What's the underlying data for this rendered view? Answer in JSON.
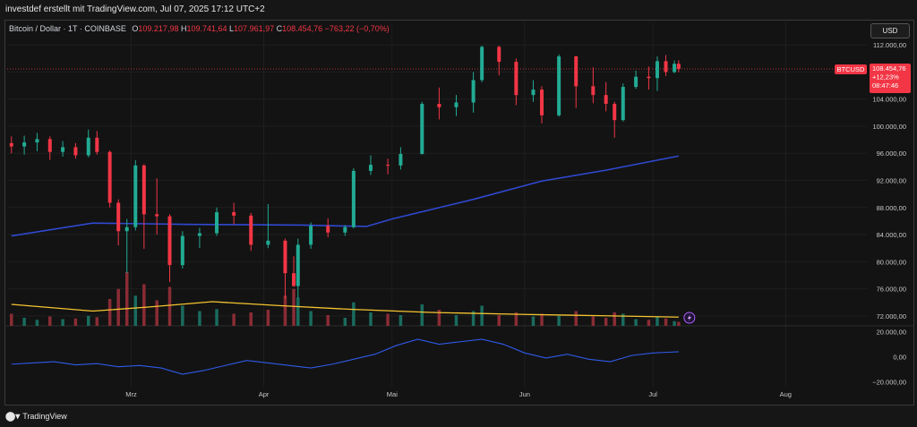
{
  "header": {
    "caption": "investdef erstellt mit TradingView.com, Jul 07, 2025 17:12 UTC+2"
  },
  "legend": {
    "symbol": "Bitcoin / Dollar · 1T · COINBASE",
    "open_label": "O",
    "open": "109.217,98",
    "high_label": "H",
    "high": "109.741,64",
    "low_label": "L",
    "low": "107.961,97",
    "close_label": "C",
    "close": "108.454,76",
    "change": "−763,22 (−0,70%)"
  },
  "currency_button": "USD",
  "price_badge": {
    "ticker": "BTCUSD",
    "price": "108.454,76",
    "change": "+12,23%",
    "countdown": "08:47:46"
  },
  "footer": {
    "logo_text": "TradingView"
  },
  "colors": {
    "up": "#22ab94",
    "down": "#f23645",
    "ma_long": "#2f49d1",
    "volume_ma": "#f4c430",
    "oscillator": "#2f5ae8",
    "background": "#131313"
  },
  "chart_data": {
    "type": "candlestick",
    "price_axis": {
      "ylim": [
        70000,
        114000
      ],
      "ticks": [
        {
          "v": 112000,
          "label": "112.000,00"
        },
        {
          "v": 108000,
          "label": "108.000,00"
        },
        {
          "v": 104000,
          "label": "104.000,00"
        },
        {
          "v": 100000,
          "label": "100.000,00"
        },
        {
          "v": 96000,
          "label": "96.000,00"
        },
        {
          "v": 92000,
          "label": "92.000,00"
        },
        {
          "v": 88000,
          "label": "88.000,00"
        },
        {
          "v": 84000,
          "label": "84.000,00"
        },
        {
          "v": 80000,
          "label": "80.000,00"
        },
        {
          "v": 76000,
          "label": "76.000,00"
        },
        {
          "v": 72000,
          "label": "72.000,00"
        }
      ]
    },
    "time_axis": {
      "labels": [
        {
          "date": "2025-03-01",
          "label": "Mrz"
        },
        {
          "date": "2025-04-01",
          "label": "Apr"
        },
        {
          "date": "2025-05-01",
          "label": "Mai"
        },
        {
          "date": "2025-06-01",
          "label": "Jun"
        },
        {
          "date": "2025-07-01",
          "label": "Jul"
        },
        {
          "date": "2025-08-01",
          "label": "Aug"
        }
      ]
    },
    "last_price": 108454.76,
    "moving_average_long": [
      {
        "date": "2025-02-01",
        "v": 83800
      },
      {
        "date": "2025-02-20",
        "v": 85700
      },
      {
        "date": "2025-03-15",
        "v": 85500
      },
      {
        "date": "2025-04-10",
        "v": 85400
      },
      {
        "date": "2025-04-25",
        "v": 85200
      },
      {
        "date": "2025-05-01",
        "v": 86300
      },
      {
        "date": "2025-05-20",
        "v": 89200
      },
      {
        "date": "2025-06-05",
        "v": 91900
      },
      {
        "date": "2025-06-20",
        "v": 93500
      },
      {
        "date": "2025-07-07",
        "v": 95600
      }
    ],
    "candles": [
      {
        "date": "2025-02-01",
        "o": 97500,
        "h": 98500,
        "l": 96000,
        "c": 97000
      },
      {
        "date": "2025-02-04",
        "o": 97000,
        "h": 98600,
        "l": 95800,
        "c": 97600
      },
      {
        "date": "2025-02-07",
        "o": 97600,
        "h": 99000,
        "l": 96300,
        "c": 98100
      },
      {
        "date": "2025-02-10",
        "o": 98100,
        "h": 98500,
        "l": 95000,
        "c": 96200
      },
      {
        "date": "2025-02-13",
        "o": 96200,
        "h": 97800,
        "l": 95500,
        "c": 96900
      },
      {
        "date": "2025-02-16",
        "o": 96900,
        "h": 97500,
        "l": 95200,
        "c": 95700
      },
      {
        "date": "2025-02-19",
        "o": 95700,
        "h": 99500,
        "l": 95400,
        "c": 98300
      },
      {
        "date": "2025-02-21",
        "o": 98300,
        "h": 99300,
        "l": 95800,
        "c": 96200
      },
      {
        "date": "2025-02-24",
        "o": 96200,
        "h": 96400,
        "l": 88000,
        "c": 88700
      },
      {
        "date": "2025-02-26",
        "o": 88700,
        "h": 89200,
        "l": 82400,
        "c": 84500
      },
      {
        "date": "2025-02-28",
        "o": 84500,
        "h": 86300,
        "l": 78300,
        "c": 85100
      },
      {
        "date": "2025-03-02",
        "o": 85100,
        "h": 95000,
        "l": 84600,
        "c": 94200
      },
      {
        "date": "2025-03-04",
        "o": 94200,
        "h": 94400,
        "l": 81900,
        "c": 87000
      },
      {
        "date": "2025-03-07",
        "o": 87000,
        "h": 92300,
        "l": 84000,
        "c": 86700
      },
      {
        "date": "2025-03-10",
        "o": 86700,
        "h": 87000,
        "l": 77000,
        "c": 79500
      },
      {
        "date": "2025-03-13",
        "o": 79500,
        "h": 84500,
        "l": 79000,
        "c": 83800
      },
      {
        "date": "2025-03-17",
        "o": 83800,
        "h": 85000,
        "l": 82000,
        "c": 84200
      },
      {
        "date": "2025-03-21",
        "o": 84200,
        "h": 88000,
        "l": 83800,
        "c": 87300
      },
      {
        "date": "2025-03-25",
        "o": 87300,
        "h": 88700,
        "l": 85500,
        "c": 86800
      },
      {
        "date": "2025-03-29",
        "o": 86800,
        "h": 87200,
        "l": 81600,
        "c": 82500
      },
      {
        "date": "2025-04-02",
        "o": 82500,
        "h": 88500,
        "l": 82000,
        "c": 83100
      },
      {
        "date": "2025-04-06",
        "o": 83100,
        "h": 83400,
        "l": 74500,
        "c": 78300
      },
      {
        "date": "2025-04-08",
        "o": 78300,
        "h": 80800,
        "l": 76300,
        "c": 76400
      },
      {
        "date": "2025-04-09",
        "o": 76400,
        "h": 83400,
        "l": 74600,
        "c": 82500
      },
      {
        "date": "2025-04-12",
        "o": 82500,
        "h": 85800,
        "l": 81900,
        "c": 85300
      },
      {
        "date": "2025-04-16",
        "o": 85300,
        "h": 86400,
        "l": 83600,
        "c": 84300
      },
      {
        "date": "2025-04-20",
        "o": 84300,
        "h": 85400,
        "l": 83800,
        "c": 85100
      },
      {
        "date": "2025-04-22",
        "o": 85100,
        "h": 93800,
        "l": 84900,
        "c": 93400
      },
      {
        "date": "2025-04-26",
        "o": 93400,
        "h": 95700,
        "l": 92800,
        "c": 94300
      },
      {
        "date": "2025-04-30",
        "o": 94300,
        "h": 95200,
        "l": 92900,
        "c": 94200
      },
      {
        "date": "2025-05-03",
        "o": 94200,
        "h": 96900,
        "l": 93600,
        "c": 95900
      },
      {
        "date": "2025-05-08",
        "o": 95900,
        "h": 103600,
        "l": 95800,
        "c": 103300
      },
      {
        "date": "2025-05-12",
        "o": 103300,
        "h": 105700,
        "l": 101000,
        "c": 102800
      },
      {
        "date": "2025-05-16",
        "o": 102800,
        "h": 104600,
        "l": 101500,
        "c": 103500
      },
      {
        "date": "2025-05-20",
        "o": 103500,
        "h": 108000,
        "l": 102000,
        "c": 106800
      },
      {
        "date": "2025-05-22",
        "o": 106800,
        "h": 111900,
        "l": 106500,
        "c": 111700
      },
      {
        "date": "2025-05-26",
        "o": 111700,
        "h": 111900,
        "l": 107500,
        "c": 109500
      },
      {
        "date": "2025-05-30",
        "o": 109500,
        "h": 110000,
        "l": 103100,
        "c": 104600
      },
      {
        "date": "2025-06-03",
        "o": 104600,
        "h": 106800,
        "l": 103600,
        "c": 105400
      },
      {
        "date": "2025-06-05",
        "o": 105400,
        "h": 105900,
        "l": 100400,
        "c": 101600
      },
      {
        "date": "2025-06-09",
        "o": 101600,
        "h": 110600,
        "l": 101400,
        "c": 110300
      },
      {
        "date": "2025-06-13",
        "o": 110300,
        "h": 110400,
        "l": 102700,
        "c": 105900
      },
      {
        "date": "2025-06-17",
        "o": 105900,
        "h": 108700,
        "l": 103400,
        "c": 104600
      },
      {
        "date": "2025-06-20",
        "o": 104600,
        "h": 106500,
        "l": 102200,
        "c": 103300
      },
      {
        "date": "2025-06-22",
        "o": 103300,
        "h": 103600,
        "l": 98300,
        "c": 100900
      },
      {
        "date": "2025-06-24",
        "o": 100900,
        "h": 106300,
        "l": 100700,
        "c": 105800
      },
      {
        "date": "2025-06-27",
        "o": 105800,
        "h": 108200,
        "l": 105500,
        "c": 107300
      },
      {
        "date": "2025-06-30",
        "o": 107300,
        "h": 108800,
        "l": 105400,
        "c": 107100
      },
      {
        "date": "2025-07-02",
        "o": 107100,
        "h": 110300,
        "l": 105200,
        "c": 109600
      },
      {
        "date": "2025-07-04",
        "o": 109600,
        "h": 110500,
        "l": 107400,
        "c": 108000
      },
      {
        "date": "2025-07-06",
        "o": 108000,
        "h": 109700,
        "l": 107800,
        "c": 109200
      },
      {
        "date": "2025-07-07",
        "o": 109218,
        "h": 109742,
        "l": 107962,
        "c": 108455
      }
    ],
    "volume": {
      "bars": [
        {
          "date": "2025-02-01",
          "v": 18,
          "dir": "down"
        },
        {
          "date": "2025-02-04",
          "v": 12,
          "dir": "up"
        },
        {
          "date": "2025-02-07",
          "v": 9,
          "dir": "up"
        },
        {
          "date": "2025-02-10",
          "v": 14,
          "dir": "down"
        },
        {
          "date": "2025-02-13",
          "v": 10,
          "dir": "up"
        },
        {
          "date": "2025-02-16",
          "v": 11,
          "dir": "down"
        },
        {
          "date": "2025-02-19",
          "v": 15,
          "dir": "up"
        },
        {
          "date": "2025-02-21",
          "v": 13,
          "dir": "down"
        },
        {
          "date": "2025-02-24",
          "v": 40,
          "dir": "down"
        },
        {
          "date": "2025-02-26",
          "v": 55,
          "dir": "down"
        },
        {
          "date": "2025-02-28",
          "v": 80,
          "dir": "down"
        },
        {
          "date": "2025-03-02",
          "v": 45,
          "dir": "up"
        },
        {
          "date": "2025-03-04",
          "v": 62,
          "dir": "down"
        },
        {
          "date": "2025-03-07",
          "v": 38,
          "dir": "down"
        },
        {
          "date": "2025-03-10",
          "v": 58,
          "dir": "down"
        },
        {
          "date": "2025-03-13",
          "v": 30,
          "dir": "up"
        },
        {
          "date": "2025-03-17",
          "v": 22,
          "dir": "up"
        },
        {
          "date": "2025-03-21",
          "v": 25,
          "dir": "up"
        },
        {
          "date": "2025-03-25",
          "v": 18,
          "dir": "down"
        },
        {
          "date": "2025-03-29",
          "v": 20,
          "dir": "down"
        },
        {
          "date": "2025-04-02",
          "v": 24,
          "dir": "down"
        },
        {
          "date": "2025-04-06",
          "v": 45,
          "dir": "down"
        },
        {
          "date": "2025-04-08",
          "v": 55,
          "dir": "down"
        },
        {
          "date": "2025-04-09",
          "v": 42,
          "dir": "up"
        },
        {
          "date": "2025-04-12",
          "v": 22,
          "dir": "up"
        },
        {
          "date": "2025-04-16",
          "v": 16,
          "dir": "down"
        },
        {
          "date": "2025-04-20",
          "v": 12,
          "dir": "up"
        },
        {
          "date": "2025-04-22",
          "v": 35,
          "dir": "up"
        },
        {
          "date": "2025-04-26",
          "v": 20,
          "dir": "up"
        },
        {
          "date": "2025-04-30",
          "v": 18,
          "dir": "down"
        },
        {
          "date": "2025-05-03",
          "v": 16,
          "dir": "up"
        },
        {
          "date": "2025-05-08",
          "v": 32,
          "dir": "up"
        },
        {
          "date": "2025-05-12",
          "v": 24,
          "dir": "down"
        },
        {
          "date": "2025-05-16",
          "v": 16,
          "dir": "up"
        },
        {
          "date": "2025-05-20",
          "v": 22,
          "dir": "up"
        },
        {
          "date": "2025-05-22",
          "v": 30,
          "dir": "up"
        },
        {
          "date": "2025-05-26",
          "v": 16,
          "dir": "down"
        },
        {
          "date": "2025-05-30",
          "v": 20,
          "dir": "down"
        },
        {
          "date": "2025-06-03",
          "v": 14,
          "dir": "up"
        },
        {
          "date": "2025-06-05",
          "v": 18,
          "dir": "down"
        },
        {
          "date": "2025-06-09",
          "v": 15,
          "dir": "up"
        },
        {
          "date": "2025-06-13",
          "v": 22,
          "dir": "down"
        },
        {
          "date": "2025-06-17",
          "v": 14,
          "dir": "down"
        },
        {
          "date": "2025-06-20",
          "v": 12,
          "dir": "down"
        },
        {
          "date": "2025-06-22",
          "v": 20,
          "dir": "down"
        },
        {
          "date": "2025-06-24",
          "v": 18,
          "dir": "up"
        },
        {
          "date": "2025-06-27",
          "v": 10,
          "dir": "up"
        },
        {
          "date": "2025-06-30",
          "v": 9,
          "dir": "down"
        },
        {
          "date": "2025-07-02",
          "v": 14,
          "dir": "up"
        },
        {
          "date": "2025-07-04",
          "v": 11,
          "dir": "down"
        },
        {
          "date": "2025-07-06",
          "v": 7,
          "dir": "up"
        },
        {
          "date": "2025-07-07",
          "v": 6,
          "dir": "down"
        }
      ],
      "ma": [
        {
          "date": "2025-02-01",
          "v": 32
        },
        {
          "date": "2025-02-20",
          "v": 22
        },
        {
          "date": "2025-03-05",
          "v": 28
        },
        {
          "date": "2025-03-20",
          "v": 36
        },
        {
          "date": "2025-04-05",
          "v": 30
        },
        {
          "date": "2025-04-20",
          "v": 25
        },
        {
          "date": "2025-05-10",
          "v": 20
        },
        {
          "date": "2025-06-01",
          "v": 17
        },
        {
          "date": "2025-06-20",
          "v": 15
        },
        {
          "date": "2025-07-07",
          "v": 13
        }
      ]
    },
    "oscillator": {
      "ylim": [
        -24000,
        24000
      ],
      "ticks": [
        {
          "v": 20000,
          "label": "20.000,00"
        },
        {
          "v": 0,
          "label": "0,00"
        },
        {
          "v": -20000,
          "label": "−20.000,00"
        }
      ],
      "points": [
        {
          "date": "2025-02-01",
          "v": -6000
        },
        {
          "date": "2025-02-06",
          "v": -5000
        },
        {
          "date": "2025-02-11",
          "v": -4000
        },
        {
          "date": "2025-02-16",
          "v": -6500
        },
        {
          "date": "2025-02-21",
          "v": -5500
        },
        {
          "date": "2025-02-26",
          "v": -8000
        },
        {
          "date": "2025-03-03",
          "v": -7000
        },
        {
          "date": "2025-03-08",
          "v": -9000
        },
        {
          "date": "2025-03-13",
          "v": -14000
        },
        {
          "date": "2025-03-18",
          "v": -11000
        },
        {
          "date": "2025-03-23",
          "v": -7000
        },
        {
          "date": "2025-03-28",
          "v": -3000
        },
        {
          "date": "2025-04-02",
          "v": -5000
        },
        {
          "date": "2025-04-07",
          "v": -7000
        },
        {
          "date": "2025-04-12",
          "v": -9000
        },
        {
          "date": "2025-04-17",
          "v": -6000
        },
        {
          "date": "2025-04-22",
          "v": -2000
        },
        {
          "date": "2025-04-27",
          "v": 2000
        },
        {
          "date": "2025-05-02",
          "v": 9000
        },
        {
          "date": "2025-05-07",
          "v": 14000
        },
        {
          "date": "2025-05-12",
          "v": 10000
        },
        {
          "date": "2025-05-17",
          "v": 12000
        },
        {
          "date": "2025-05-22",
          "v": 14000
        },
        {
          "date": "2025-05-27",
          "v": 10000
        },
        {
          "date": "2025-06-01",
          "v": 3000
        },
        {
          "date": "2025-06-06",
          "v": -1000
        },
        {
          "date": "2025-06-11",
          "v": 2000
        },
        {
          "date": "2025-06-16",
          "v": -2000
        },
        {
          "date": "2025-06-21",
          "v": -4000
        },
        {
          "date": "2025-06-26",
          "v": 1000
        },
        {
          "date": "2025-07-01",
          "v": 3000
        },
        {
          "date": "2025-07-04",
          "v": 3500
        },
        {
          "date": "2025-07-07",
          "v": 4000
        }
      ]
    }
  }
}
